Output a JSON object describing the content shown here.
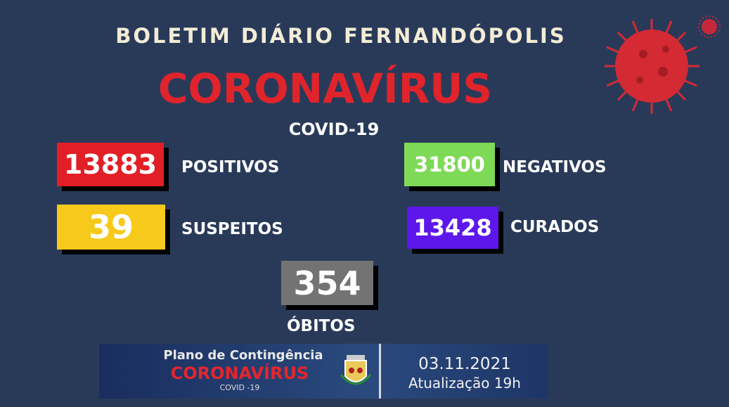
{
  "header": {
    "bulletin": "BOLETIM DIÁRIO FERNANDÓPOLIS",
    "title": "CORONAVÍRUS",
    "subtitle": "COVID-19"
  },
  "stats": {
    "positivos": {
      "value": "13883",
      "label": "POSITIVOS",
      "color": "#e21f26"
    },
    "negativos": {
      "value": "31800",
      "label": "NEGATIVOS",
      "color": "#7ed957"
    },
    "suspeitos": {
      "value": "39",
      "label": "SUSPEITOS",
      "color": "#f6c91b"
    },
    "curados": {
      "value": "13428",
      "label": "CURADOS",
      "color": "#5e17eb"
    },
    "obitos": {
      "value": "354",
      "label": "ÓBITOS",
      "color": "#737373"
    }
  },
  "banner": {
    "plan": "Plano de Contingência",
    "title": "CORONAVÍRUS",
    "subtitle": "COVID -19",
    "date": "03.11.2021",
    "update": "Atualização 19h"
  },
  "icons": [
    "virus-icon",
    "city-coat-of-arms-icon"
  ]
}
